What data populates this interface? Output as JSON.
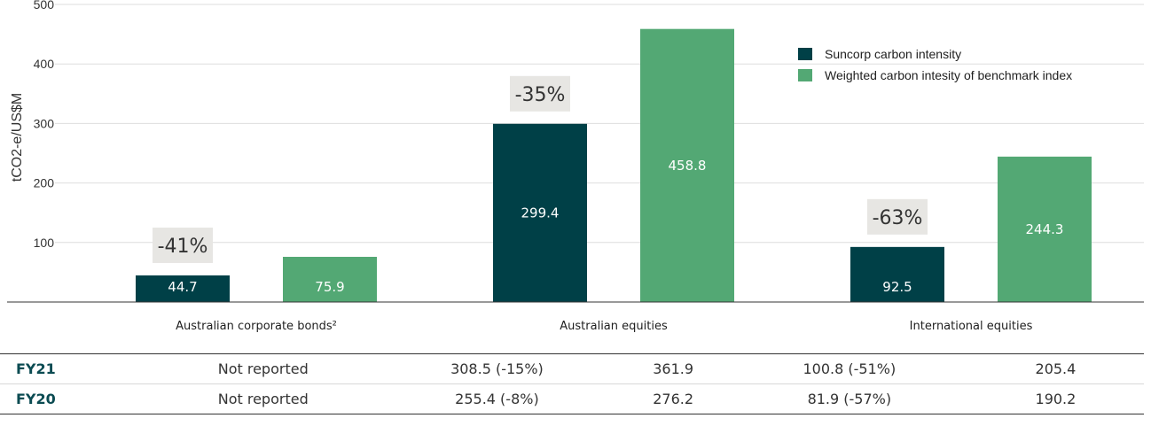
{
  "colors": {
    "suncorp": "#004047",
    "benchmark": "#53a874",
    "change_box": "#e7e6e3",
    "grid": "#dedede"
  },
  "chart_data": {
    "type": "bar",
    "ylabel": "tCO2-e/US$M",
    "ylim": [
      0,
      500
    ],
    "yticks": [
      100,
      200,
      300,
      400,
      500
    ],
    "grid": true,
    "legend_position": "top-right",
    "categories": [
      "Australian corporate bonds²",
      "Australian equities",
      "International equities"
    ],
    "series": [
      {
        "name": "Suncorp carbon intensity",
        "values": [
          44.7,
          299.4,
          92.5
        ],
        "labels": [
          "44.7",
          "299.4",
          "92.5"
        ]
      },
      {
        "name": "Weighted carbon intesity of benchmark index",
        "values": [
          75.9,
          458.8,
          244.3
        ],
        "labels": [
          "75.9",
          "458.8",
          "244.3"
        ]
      }
    ],
    "annotations": [
      "-41%",
      "-35%",
      "-63%"
    ]
  },
  "table": {
    "rows": [
      {
        "label": "FY21",
        "cells": [
          "Not reported",
          "308.5 (-15%)",
          "361.9",
          "100.8 (-51%)",
          "205.4"
        ]
      },
      {
        "label": "FY20",
        "cells": [
          "Not reported",
          "255.4 (-8%)",
          "276.2",
          "81.9 (-57%)",
          "190.2"
        ]
      }
    ]
  }
}
